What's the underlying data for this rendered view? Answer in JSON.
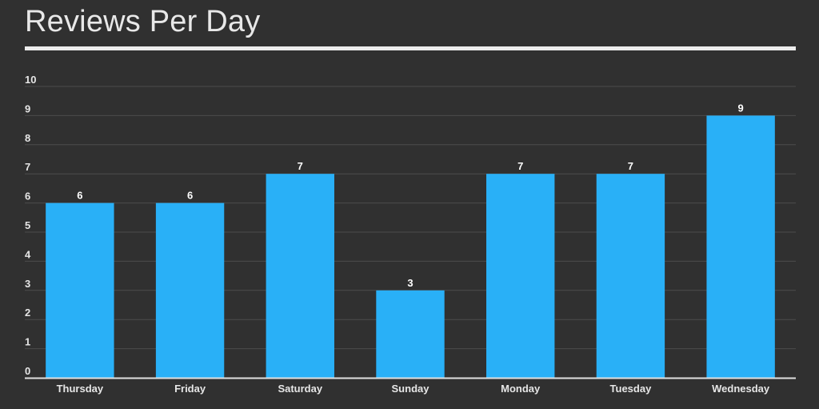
{
  "title": "Reviews Per Day",
  "colors": {
    "background": "#303030",
    "bar": "#29b0f7",
    "grid": "#4c4c4c",
    "axis": "#e0e0e0"
  },
  "chart_data": {
    "type": "bar",
    "title": "Reviews Per Day",
    "categories": [
      "Thursday",
      "Friday",
      "Saturday",
      "Sunday",
      "Monday",
      "Tuesday",
      "Wednesday"
    ],
    "values": [
      6,
      6,
      7,
      3,
      7,
      7,
      9
    ],
    "yticks": [
      0,
      1,
      2,
      3,
      4,
      5,
      6,
      7,
      8,
      9,
      10
    ],
    "ylim": [
      0,
      10
    ],
    "xlabel": "",
    "ylabel": "",
    "grid": true,
    "legend": "none",
    "data_labels": true
  }
}
